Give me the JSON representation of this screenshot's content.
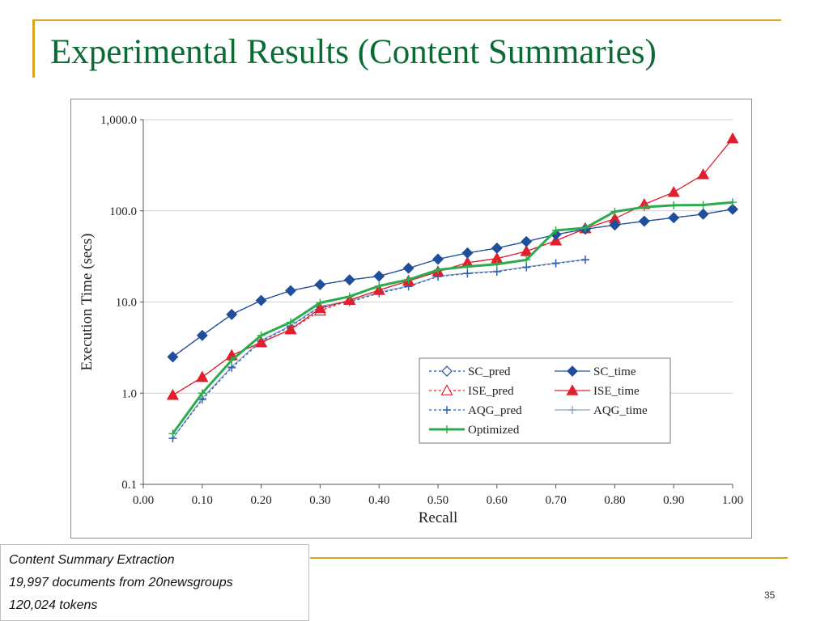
{
  "slide": {
    "title": "Experimental Results (Content Summaries)",
    "page_number": "35"
  },
  "caption": {
    "lines": [
      "Content Summary Extraction",
      "19,997 documents from 20newsgroups",
      "120,024 tokens"
    ]
  },
  "colors": {
    "accent_rule": "#d9a520",
    "title": "#0b6b34",
    "sc": "#1f4e9c",
    "ise": "#e0202e",
    "aqg": "#2b5fb3",
    "aqg_time": "#8ea2c4",
    "optimized": "#2eaa4f"
  },
  "chart_data": {
    "type": "line",
    "xlabel": "Recall",
    "ylabel": "Execution Time (secs)",
    "x_scale": "linear",
    "y_scale": "log",
    "xlim": [
      0.0,
      1.0
    ],
    "ylim": [
      0.1,
      1000
    ],
    "x_ticks": [
      "0.00",
      "0.10",
      "0.20",
      "0.30",
      "0.40",
      "0.50",
      "0.60",
      "0.70",
      "0.80",
      "0.90",
      "1.00"
    ],
    "y_ticks": [
      {
        "value": 0.1,
        "label": "0.1"
      },
      {
        "value": 1,
        "label": "1.0"
      },
      {
        "value": 10,
        "label": "10.0"
      },
      {
        "value": 100,
        "label": "100.0"
      },
      {
        "value": 1000,
        "label": "1,000.0"
      }
    ],
    "grid": "horizontal",
    "legend_position": "bottom-right",
    "series": [
      {
        "name": "SC_pred",
        "color": "#1f4e9c",
        "dash": "3,3",
        "marker": "diamond-open",
        "x": [
          0.05,
          0.1,
          0.15,
          0.2,
          0.25,
          0.3,
          0.35,
          0.4,
          0.45,
          0.5,
          0.55,
          0.6,
          0.65,
          0.7,
          0.75,
          0.8,
          0.85,
          0.9,
          0.95,
          1.0
        ],
        "y": [
          2.5,
          4.3,
          7.3,
          10.4,
          13.3,
          15.5,
          17.5,
          19.2,
          23.5,
          29.5,
          34.5,
          39,
          46,
          55,
          63,
          70,
          77,
          84,
          92,
          104
        ]
      },
      {
        "name": "SC_time",
        "color": "#1f4e9c",
        "dash": "",
        "marker": "diamond",
        "x": [
          0.05,
          0.1,
          0.15,
          0.2,
          0.25,
          0.3,
          0.35,
          0.4,
          0.45,
          0.5,
          0.55,
          0.6,
          0.65,
          0.7,
          0.75,
          0.8,
          0.85,
          0.9,
          0.95,
          1.0
        ],
        "y": [
          2.5,
          4.3,
          7.3,
          10.4,
          13.3,
          15.5,
          17.5,
          19.2,
          23.5,
          29.5,
          34.5,
          39,
          46,
          55,
          63,
          70,
          77,
          84,
          92,
          104
        ]
      },
      {
        "name": "ISE_pred",
        "color": "#e0202e",
        "dash": "3,3",
        "marker": "triangle-open",
        "x": [
          0.05,
          0.1,
          0.15,
          0.2,
          0.25,
          0.3,
          0.35,
          0.4,
          0.45,
          0.5,
          0.55,
          0.6,
          0.65,
          0.7,
          0.75
        ],
        "y": [
          0.95,
          1.5,
          2.6,
          3.6,
          5.0,
          8.0,
          10.5,
          13.5,
          17.0,
          21.5,
          27,
          30,
          36,
          47,
          64
        ]
      },
      {
        "name": "ISE_time",
        "color": "#e0202e",
        "dash": "",
        "marker": "triangle",
        "x": [
          0.05,
          0.1,
          0.15,
          0.2,
          0.25,
          0.3,
          0.35,
          0.4,
          0.45,
          0.5,
          0.55,
          0.6,
          0.65,
          0.7,
          0.75,
          0.8,
          0.85,
          0.9,
          0.95,
          1.0
        ],
        "y": [
          0.95,
          1.5,
          2.6,
          3.6,
          5.0,
          8.5,
          10.5,
          13.5,
          17.0,
          21.5,
          27,
          30,
          36,
          47,
          64,
          82,
          118,
          160,
          250,
          620
        ]
      },
      {
        "name": "AQG_pred",
        "color": "#2b5fb3",
        "dash": "3,3",
        "marker": "plus",
        "x": [
          0.05,
          0.1,
          0.15,
          0.2,
          0.25,
          0.3,
          0.35,
          0.4,
          0.45,
          0.5,
          0.55,
          0.6,
          0.65,
          0.7,
          0.75
        ],
        "y": [
          0.32,
          0.85,
          1.9,
          3.7,
          5.4,
          8.8,
          10.0,
          12.5,
          14.8,
          19.0,
          20.5,
          21.5,
          24.0,
          26.5,
          29.0
        ]
      },
      {
        "name": "AQG_time",
        "color": "#8ea2c4",
        "dash": "",
        "marker": "plus",
        "x": [
          0.05,
          0.1,
          0.15,
          0.2,
          0.25,
          0.3,
          0.35,
          0.4,
          0.45,
          0.5,
          0.55,
          0.6,
          0.65,
          0.7,
          0.75
        ],
        "y": [
          0.32,
          0.88,
          1.95,
          3.8,
          5.5,
          9.0,
          10.2,
          12.8,
          15.0,
          19.2,
          20.8,
          21.8,
          24.3,
          26.8,
          29.3
        ]
      },
      {
        "name": "Optimized",
        "color": "#2eaa4f",
        "dash": "",
        "marker": "plus",
        "width": 3,
        "x": [
          0.05,
          0.1,
          0.15,
          0.2,
          0.25,
          0.3,
          0.35,
          0.4,
          0.45,
          0.5,
          0.55,
          0.6,
          0.65,
          0.7,
          0.75,
          0.8,
          0.85,
          0.9,
          0.95,
          1.0
        ],
        "y": [
          0.36,
          1.0,
          2.3,
          4.3,
          6.0,
          9.8,
          11.5,
          15.0,
          17.6,
          22.5,
          24.5,
          26.0,
          29.0,
          61,
          65,
          98,
          110,
          115,
          116,
          124
        ]
      }
    ]
  }
}
